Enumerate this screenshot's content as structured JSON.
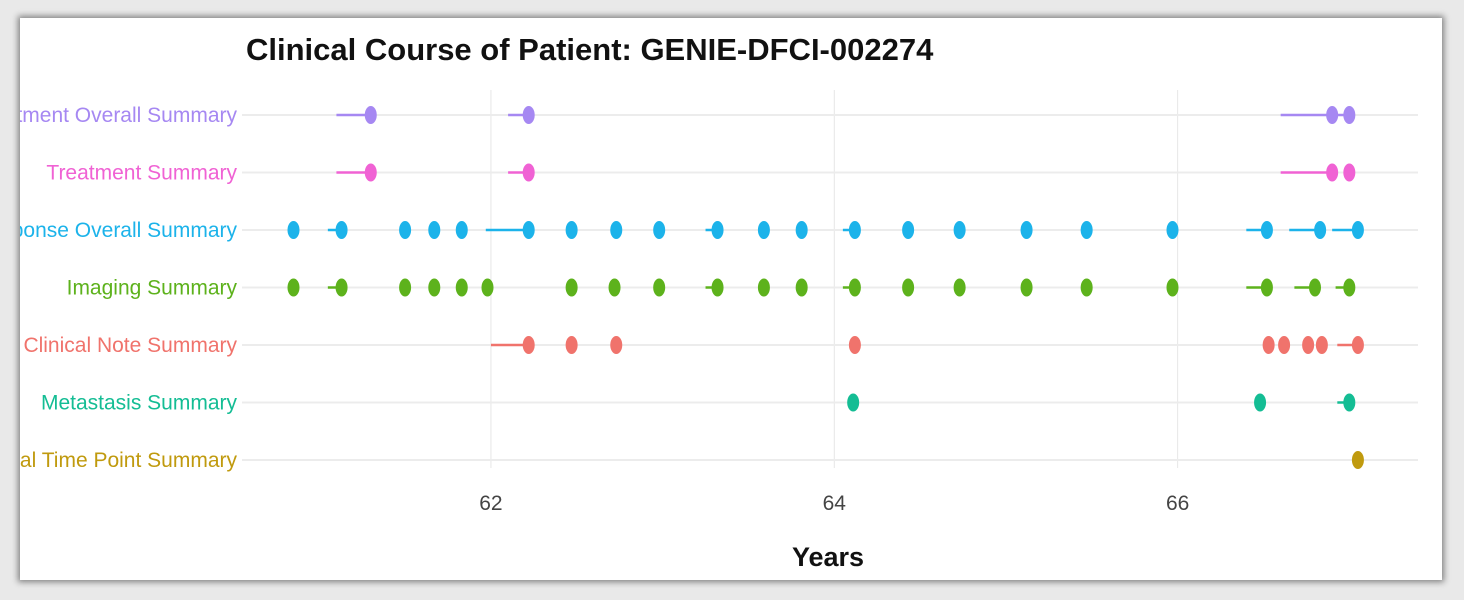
{
  "chart_data": {
    "type": "scatter",
    "title": "Clinical Course of Patient: GENIE-DFCI-002274",
    "xlabel": "Years",
    "ylabel": "",
    "xlim": [
      60.55,
      67.4
    ],
    "xticks": [
      62,
      64,
      66
    ],
    "grid": true,
    "legend": "none",
    "series": [
      {
        "name": "Treatment Overall Summary",
        "color": "#a688f2",
        "segments": [
          [
            61.1,
            61.3
          ],
          [
            62.1,
            62.22
          ],
          [
            66.6,
            66.9
          ],
          [
            66.9,
            67.0
          ]
        ],
        "points": [
          61.3,
          62.22,
          66.9,
          67.0
        ]
      },
      {
        "name": "Treatment Summary",
        "color": "#f062d4",
        "segments": [
          [
            61.1,
            61.3
          ],
          [
            62.1,
            62.22
          ],
          [
            66.6,
            66.9
          ]
        ],
        "points": [
          61.3,
          62.22,
          66.9,
          67.0
        ]
      },
      {
        "name": "Response Overall Summary",
        "color": "#1cb3ea",
        "segments": [
          [
            61.05,
            61.13
          ],
          [
            61.97,
            62.22
          ],
          [
            63.25,
            63.3
          ],
          [
            64.05,
            64.1
          ],
          [
            66.4,
            66.52
          ],
          [
            66.65,
            66.83
          ],
          [
            66.9,
            67.05
          ]
        ],
        "points": [
          60.85,
          61.13,
          61.5,
          61.67,
          61.83,
          62.22,
          62.47,
          62.73,
          62.98,
          63.32,
          63.59,
          63.81,
          64.12,
          64.43,
          64.73,
          65.12,
          65.47,
          65.97,
          66.52,
          66.83,
          67.05
        ]
      },
      {
        "name": "Imaging Summary",
        "color": "#5db21c",
        "segments": [
          [
            61.05,
            61.13
          ],
          [
            63.25,
            63.3
          ],
          [
            64.05,
            64.1
          ],
          [
            66.4,
            66.52
          ],
          [
            66.68,
            66.8
          ],
          [
            66.92,
            67.0
          ]
        ],
        "points": [
          60.85,
          61.13,
          61.5,
          61.67,
          61.83,
          61.98,
          62.47,
          62.72,
          62.98,
          63.32,
          63.59,
          63.81,
          64.12,
          64.43,
          64.73,
          65.12,
          65.47,
          65.97,
          66.52,
          66.8,
          67.0
        ]
      },
      {
        "name": "Clinical Note Summary",
        "color": "#f0736c",
        "segments": [
          [
            62.0,
            62.22
          ],
          [
            66.93,
            67.05
          ]
        ],
        "points": [
          62.22,
          62.47,
          62.73,
          64.12,
          66.53,
          66.62,
          66.76,
          66.84,
          67.05
        ]
      },
      {
        "name": "Metastasis Summary",
        "color": "#14bd94",
        "segments": [
          [
            66.93,
            67.0
          ]
        ],
        "points": [
          64.11,
          66.48,
          67.0
        ]
      },
      {
        "name": "Clinical Time Point Summary",
        "color": "#c09a0e",
        "segments": [],
        "points": [
          67.05
        ]
      }
    ]
  }
}
